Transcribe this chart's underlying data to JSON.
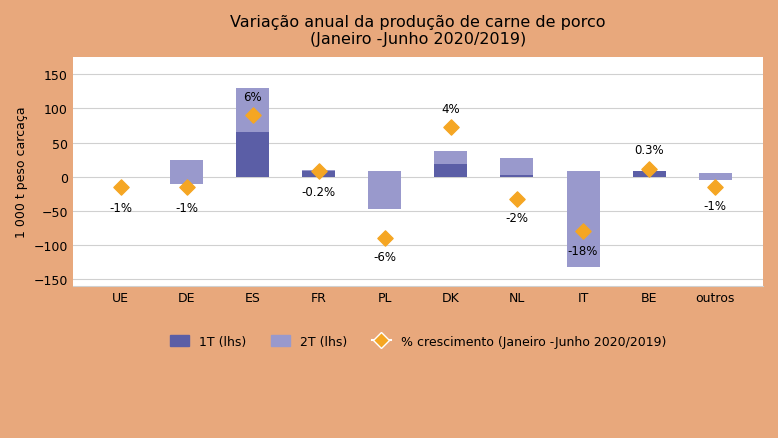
{
  "title": "Variação anual da produção de carne de porco\n(Janeiro -Junho 2020/2019)",
  "ylabel": "1 000 t peso carcaça",
  "categories": [
    "UE",
    "DE",
    "ES",
    "FR",
    "PL",
    "DK",
    "NL",
    "IT",
    "BE",
    "outros"
  ],
  "bar1T": [
    0,
    25,
    65,
    8,
    8,
    18,
    28,
    8,
    8,
    5
  ],
  "bar2T": [
    0,
    -35,
    65,
    2,
    -55,
    20,
    -25,
    -140,
    0,
    -10
  ],
  "markers": [
    -15,
    -15,
    90,
    8,
    -90,
    73,
    -32,
    -80,
    12,
    -15
  ],
  "pct_labels": [
    "-1%",
    "-1%",
    "6%",
    "-0.2%",
    "-6%",
    "4%",
    "-2%",
    "-18%",
    "0.3%",
    "-1%"
  ],
  "pct_label_x_offsets": [
    0,
    0,
    0,
    0,
    0,
    0,
    0,
    0,
    0,
    0
  ],
  "pct_label_y_offsets": [
    -20,
    -20,
    18,
    -20,
    -18,
    18,
    -18,
    -18,
    18,
    -18
  ],
  "pct_label_va": [
    "top",
    "top",
    "bottom",
    "top",
    "top",
    "bottom",
    "top",
    "top",
    "bottom",
    "top"
  ],
  "color_1T": "#5b5ea6",
  "color_2T": "#9999cc",
  "color_marker": "#f5a623",
  "color_bg": "#e8a87c",
  "color_plot_bg": "#ffffff",
  "ylim": [
    -160,
    175
  ],
  "yticks": [
    -150,
    -100,
    -50,
    0,
    50,
    100,
    150
  ],
  "legend_labels": [
    "1T (lhs)",
    "2T (lhs)",
    "% crescimento (Janeiro -Junho 2020/2019)"
  ],
  "bar_width": 0.5,
  "title_fontsize": 11.5,
  "tick_fontsize": 9,
  "ylabel_fontsize": 9,
  "legend_fontsize": 9
}
